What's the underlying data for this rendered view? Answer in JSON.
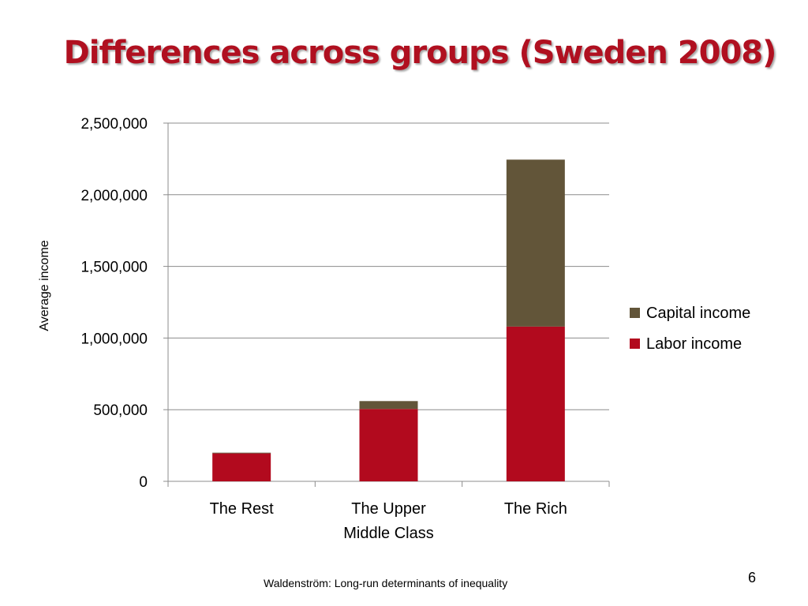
{
  "slide": {
    "title": "Differences across groups (Sweden 2008)",
    "footer": "Waldenström: Long-run determinants of inequality",
    "page_number": "6"
  },
  "colors": {
    "title": "#b01020",
    "labor_income": "#b20a1e",
    "capital_income": "#625539",
    "gridline": "#8c8c8c"
  },
  "chart_data": {
    "type": "bar",
    "stacked": true,
    "title": "",
    "xlabel": "",
    "ylabel": "Average income",
    "categories": [
      [
        "The Rest"
      ],
      [
        "The Upper",
        "Middle Class"
      ],
      [
        "The Rich"
      ]
    ],
    "series": [
      {
        "name": "Labor income",
        "color": "#b20a1e",
        "values": [
          195000,
          505000,
          1080000
        ]
      },
      {
        "name": "Capital income",
        "color": "#625539",
        "values": [
          5000,
          55000,
          1165000
        ]
      }
    ],
    "ylim": [
      0,
      2500000
    ],
    "yticks": [
      0,
      500000,
      1000000,
      1500000,
      2000000,
      2500000
    ],
    "ytick_labels": [
      "0",
      "500,000",
      "1,000,000",
      "1,500,000",
      "2,000,000",
      "2,500,000"
    ],
    "grid": true,
    "legend_position": "right",
    "legend_order": [
      "Capital income",
      "Labor income"
    ]
  }
}
